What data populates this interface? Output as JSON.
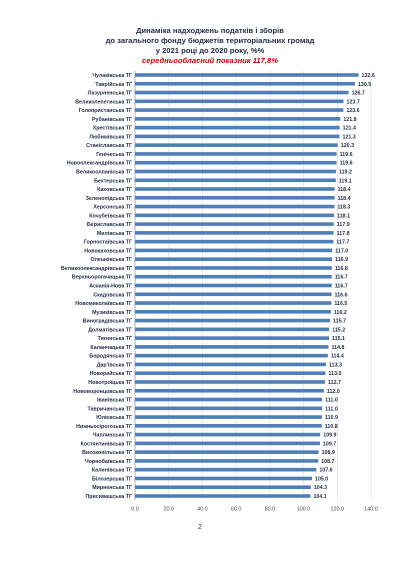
{
  "chart_data": {
    "type": "bar",
    "orientation": "horizontal",
    "title_lines": [
      "Динаміка надходжень податків і зборів",
      "до загального фонду бюджетів територіальних громад",
      "у 2021 році до 2020 року, %%"
    ],
    "subtitle": "середньообласний показник 117,8%",
    "categories": [
      "Чулаківська ТГ",
      "Таврійська ТГ",
      "Лазурненська ТГ",
      "Великолепетиська ТГ",
      "Голопристанська ТГ",
      "Рубанівська ТГ",
      "Хрестівська ТГ",
      "Любимівська ТГ",
      "Станіславська ТГ",
      "Генічеська ТГ",
      "Новоолександрівська ТГ",
      "Великоолпаніська ТГ",
      "Бехтерська ТГ",
      "Каховська ТГ",
      "Зеленопідська ТГ",
      "Херсонська ТГ",
      "Кочубеївська ТГ",
      "Бериславська ТГ",
      "Милівська ТГ",
      "Горностаївська ТГ",
      "Новокаховська ТГ",
      "Олешківська ТГ",
      "Великоолександрівська ТГ",
      "Верхньорогачицька ТГ",
      "Асканія-Нова ТГ",
      "Скадовська ТГ",
      "Новомиколаївська ТГ",
      "Музиківська ТГ",
      "Виноградівська ТГ",
      "Долматівська ТГ",
      "Тягинська ТГ",
      "Каланчацька ТГ",
      "Бородянська ТГ",
      "Дар'ївська ТГ",
      "Новорайська ТГ",
      "Новотроїцька ТГ",
      "Нововоронцовська ТГ",
      "Іванівська ТГ",
      "Тавричанська ТГ",
      "Юлієвська ТГ",
      "Нижньосірогозька ТГ",
      "Чаплинська ТГ",
      "Костянтинівська ТГ",
      "Високопільська ТГ",
      "Чорнобаївська ТГ",
      "Калинівська ТГ",
      "Білозерська ТГ",
      "Мирненська ТГ",
      "Присивашська ТГ"
    ],
    "values": [
      132.6,
      130.5,
      126.7,
      123.7,
      123.6,
      121.8,
      121.4,
      121.3,
      120.3,
      119.6,
      119.6,
      119.2,
      119.1,
      118.4,
      118.4,
      118.3,
      118.1,
      117.9,
      117.8,
      117.7,
      117.0,
      116.9,
      116.8,
      116.7,
      116.7,
      116.6,
      116.5,
      116.2,
      115.7,
      115.2,
      115.1,
      114.8,
      114.4,
      113.3,
      113.0,
      112.7,
      112.0,
      111.0,
      111.0,
      110.9,
      110.8,
      109.9,
      109.7,
      108.9,
      108.7,
      107.6,
      105.0,
      104.3,
      104.1
    ],
    "value_labels": [
      "132.6",
      "130.5",
      "126.7",
      "123.7",
      "123.6",
      "121.8",
      "121.4",
      "121.3",
      "120.3",
      "119.6",
      "119.6",
      "119.2",
      "119.1",
      "118.4",
      "118.4",
      "118.3",
      "118.1",
      "117.9",
      "117.8",
      "117.7",
      "117.0",
      "116.9",
      "116.8",
      "116.7",
      "116.7",
      "116.6",
      "116.5",
      "116.2",
      "115.7",
      "115.2",
      "115.1",
      "114.8",
      "114.4",
      "113.3",
      "113.0",
      "112.7",
      "112.0",
      "111.0",
      "111.0",
      "110.9",
      "110.8",
      "109.9",
      "109.7",
      "108.9",
      "108.7",
      "107.6",
      "105.0",
      "104.3",
      "104.1"
    ],
    "xlim": [
      0,
      140
    ],
    "x_ticks": [
      "0.0",
      "20.0",
      "40.0",
      "60.0",
      "80.0",
      "100.0",
      "120.0",
      "140.0"
    ],
    "grid": true,
    "bar_color": "#4f7fb8",
    "title_color": "#1f2a44",
    "subtitle_color": "#c00000"
  },
  "page_number": "2"
}
